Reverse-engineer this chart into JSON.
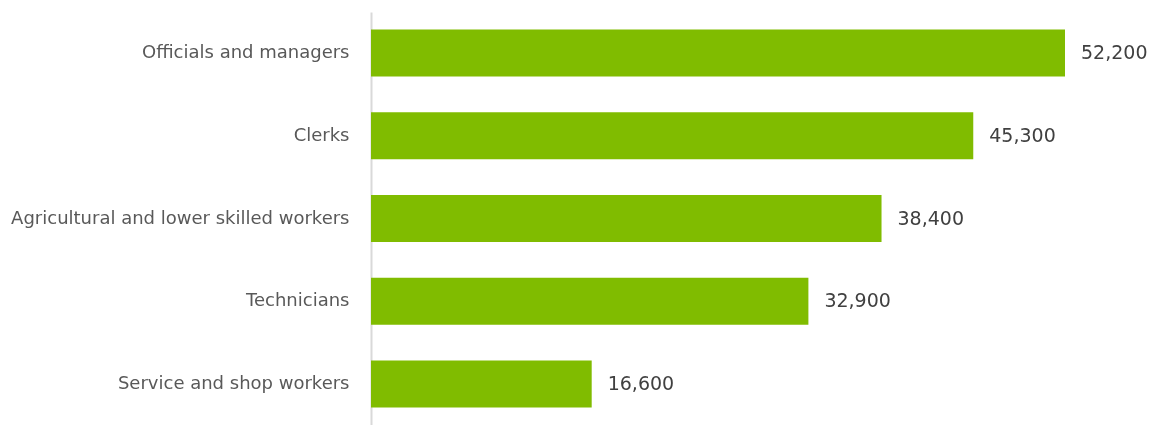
{
  "chart_data": {
    "type": "bar",
    "orientation": "horizontal",
    "categories": [
      "Officials and managers",
      "Clerks",
      "Agricultural and lower skilled workers",
      "Technicians",
      "Service and shop workers"
    ],
    "values": [
      52200,
      45300,
      38400,
      32900,
      16600
    ],
    "value_labels": [
      "52,200",
      "45,300",
      "38,400",
      "32,900",
      "16,600"
    ],
    "color": "#80bc00",
    "tick_labels": "y"
  }
}
